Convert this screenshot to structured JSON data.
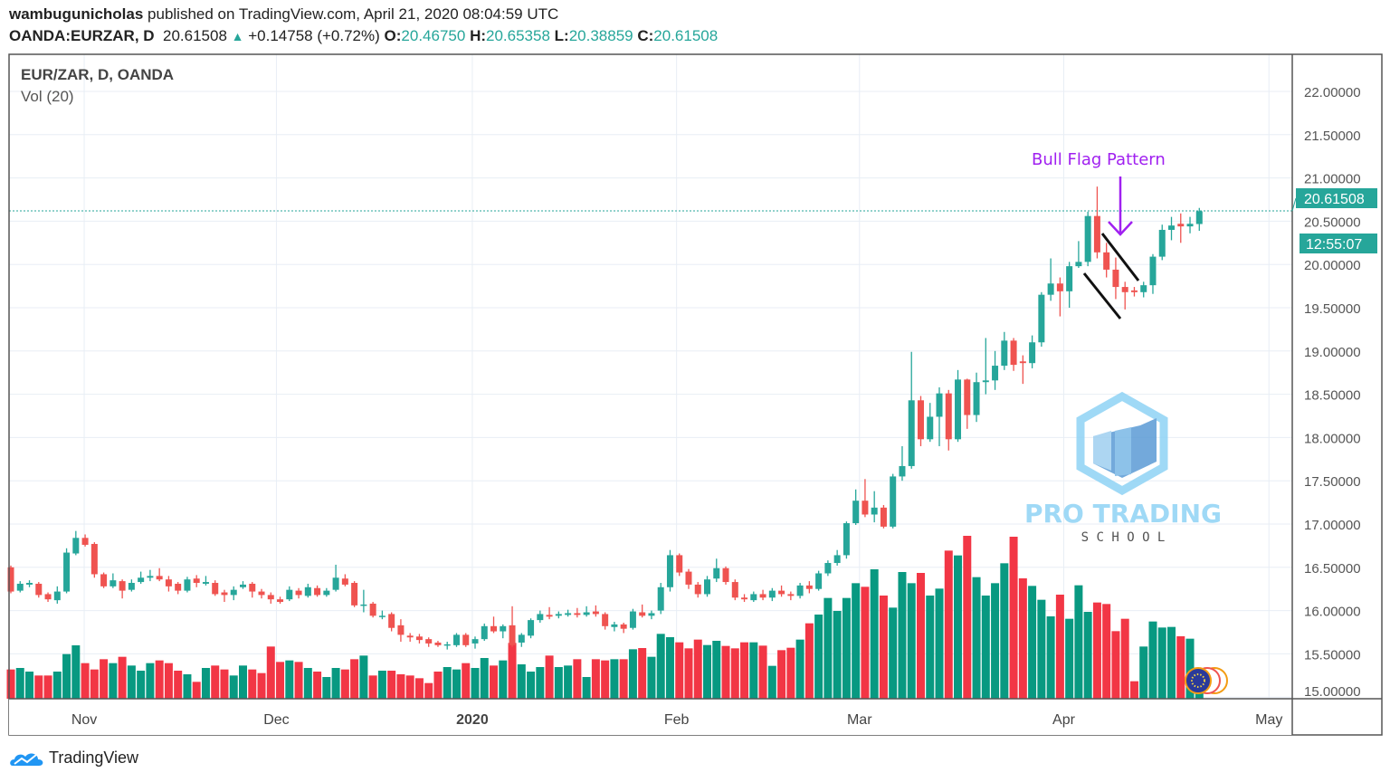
{
  "header": {
    "author": "wambugunicholas",
    "published_text": "published on TradingView.com, April 21, 2020 08:04:59 UTC",
    "symbol": "OANDA:EURZAR, D",
    "last_price": "20.61508",
    "change": "+0.14758 (+0.72%)",
    "open_label": "O:",
    "open": "20.46750",
    "high_label": "H:",
    "high": "20.65358",
    "low_label": "L:",
    "low": "20.38859",
    "close_label": "C:",
    "close": "20.61508"
  },
  "legend": {
    "title": "EUR/ZAR, D, OANDA",
    "volume": "Vol (20)"
  },
  "price_axis": {
    "current_price": "20.61508",
    "countdown": "12:55:07"
  },
  "annotation": {
    "text": "Bull Flag Pattern",
    "color": "#a020f0"
  },
  "watermark": {
    "line1": "PRO TRADING",
    "line2": "S C H O O L"
  },
  "footer": {
    "brand": "TradingView"
  },
  "colors": {
    "up": "#26a69a",
    "down": "#ef5350",
    "up_volume": "#089981",
    "down_volume": "#f23645",
    "grid": "#e8eef5",
    "price_line": "#26a69a"
  },
  "chart_data": {
    "type": "candlestick",
    "title": "EUR/ZAR, D, OANDA",
    "ylim": [
      15.0,
      22.0
    ],
    "y_ticks": [
      "22.00000",
      "21.50000",
      "21.00000",
      "20.50000",
      "20.00000",
      "19.50000",
      "19.00000",
      "18.50000",
      "18.00000",
      "17.50000",
      "17.00000",
      "16.50000",
      "16.00000",
      "15.50000",
      "15.00000"
    ],
    "x_ticks": [
      {
        "label": "Nov",
        "bar": 7.9
      },
      {
        "label": "Dec",
        "bar": 28.6
      },
      {
        "label": "2020",
        "bar": 49.7
      },
      {
        "label": "Feb",
        "bar": 71.7
      },
      {
        "label": "Mar",
        "bar": 91.4
      },
      {
        "label": "Apr",
        "bar": 113.4
      },
      {
        "label": "May",
        "bar": 135.5
      }
    ],
    "grid": true,
    "candle_fields": [
      "open",
      "high",
      "low",
      "close",
      "volume_relative"
    ],
    "candles": [
      [
        16.5,
        16.52,
        16.2,
        16.22,
        97
      ],
      [
        16.23,
        16.34,
        16.21,
        16.31,
        102
      ],
      [
        16.3,
        16.35,
        16.27,
        16.32,
        90
      ],
      [
        16.31,
        16.33,
        16.15,
        16.18,
        77
      ],
      [
        16.19,
        16.21,
        16.1,
        16.13,
        77
      ],
      [
        16.12,
        16.28,
        16.08,
        16.22,
        90
      ],
      [
        16.22,
        16.72,
        16.2,
        16.67,
        148
      ],
      [
        16.66,
        16.92,
        16.64,
        16.84,
        177
      ],
      [
        16.84,
        16.88,
        16.74,
        16.76,
        118
      ],
      [
        16.77,
        16.79,
        16.38,
        16.42,
        97
      ],
      [
        16.42,
        16.44,
        16.26,
        16.28,
        131
      ],
      [
        16.28,
        16.43,
        16.26,
        16.35,
        118
      ],
      [
        16.34,
        16.36,
        16.14,
        16.23,
        139
      ],
      [
        16.24,
        16.36,
        16.22,
        16.32,
        110
      ],
      [
        16.33,
        16.45,
        16.31,
        16.38,
        93
      ],
      [
        16.38,
        16.47,
        16.34,
        16.4,
        118
      ],
      [
        16.4,
        16.49,
        16.34,
        16.36,
        127
      ],
      [
        16.36,
        16.4,
        16.22,
        16.28,
        118
      ],
      [
        16.31,
        16.33,
        16.19,
        16.23,
        93
      ],
      [
        16.23,
        16.39,
        16.21,
        16.36,
        81
      ],
      [
        16.37,
        16.41,
        16.27,
        16.32,
        56
      ],
      [
        16.31,
        16.4,
        16.29,
        16.33,
        102
      ],
      [
        16.32,
        16.35,
        16.17,
        16.19,
        110
      ],
      [
        16.21,
        16.24,
        16.1,
        16.18,
        97
      ],
      [
        16.18,
        16.28,
        16.12,
        16.24,
        77
      ],
      [
        16.27,
        16.34,
        16.25,
        16.3,
        110
      ],
      [
        16.31,
        16.33,
        16.15,
        16.22,
        97
      ],
      [
        16.22,
        16.25,
        16.14,
        16.18,
        85
      ],
      [
        16.18,
        16.21,
        16.08,
        16.13,
        173
      ],
      [
        16.13,
        16.16,
        16.08,
        16.1,
        122
      ],
      [
        16.13,
        16.28,
        16.11,
        16.24,
        127
      ],
      [
        16.23,
        16.26,
        16.14,
        16.18,
        122
      ],
      [
        16.17,
        16.31,
        16.15,
        16.27,
        102
      ],
      [
        16.26,
        16.29,
        16.16,
        16.18,
        90
      ],
      [
        16.18,
        16.26,
        16.16,
        16.23,
        72
      ],
      [
        16.24,
        16.53,
        16.22,
        16.38,
        102
      ],
      [
        16.37,
        16.42,
        16.28,
        16.3,
        97
      ],
      [
        16.32,
        16.34,
        16.04,
        16.06,
        131
      ],
      [
        16.06,
        16.24,
        15.98,
        16.07,
        143
      ],
      [
        16.08,
        16.1,
        15.92,
        15.94,
        77
      ],
      [
        15.93,
        16.0,
        15.9,
        15.94,
        93
      ],
      [
        15.96,
        15.98,
        15.76,
        15.8,
        93
      ],
      [
        15.83,
        15.9,
        15.64,
        15.72,
        81
      ],
      [
        15.71,
        15.74,
        15.64,
        15.69,
        77
      ],
      [
        15.7,
        15.73,
        15.62,
        15.66,
        68
      ],
      [
        15.67,
        15.69,
        15.58,
        15.62,
        52
      ],
      [
        15.63,
        15.65,
        15.58,
        15.6,
        90
      ],
      [
        15.61,
        15.64,
        15.55,
        15.61,
        105
      ],
      [
        15.6,
        15.74,
        15.58,
        15.72,
        97
      ],
      [
        15.72,
        15.74,
        15.58,
        15.6,
        118
      ],
      [
        15.62,
        15.7,
        15.56,
        15.67,
        102
      ],
      [
        15.67,
        15.85,
        15.65,
        15.82,
        135
      ],
      [
        15.82,
        15.93,
        15.74,
        15.76,
        110
      ],
      [
        15.76,
        15.84,
        15.68,
        15.82,
        127
      ],
      [
        15.83,
        16.05,
        15.58,
        15.6,
        185
      ],
      [
        15.63,
        15.74,
        15.58,
        15.72,
        114
      ],
      [
        15.71,
        15.91,
        15.68,
        15.89,
        90
      ],
      [
        15.89,
        16.0,
        15.86,
        15.96,
        105
      ],
      [
        15.95,
        16.04,
        15.9,
        15.93,
        143
      ],
      [
        15.94,
        15.99,
        15.91,
        15.96,
        105
      ],
      [
        15.95,
        16.01,
        15.93,
        15.97,
        110
      ],
      [
        15.97,
        16.03,
        15.92,
        15.95,
        131
      ],
      [
        15.95,
        16.05,
        15.93,
        15.98,
        72
      ],
      [
        15.99,
        16.06,
        15.93,
        15.96,
        131
      ],
      [
        15.96,
        15.98,
        15.78,
        15.82,
        127
      ],
      [
        15.81,
        15.87,
        15.76,
        15.84,
        131
      ],
      [
        15.84,
        15.86,
        15.74,
        15.79,
        131
      ],
      [
        15.8,
        16.02,
        15.78,
        15.99,
        164
      ],
      [
        15.98,
        16.07,
        15.92,
        15.94,
        168
      ],
      [
        15.94,
        16.0,
        15.9,
        15.97,
        139
      ],
      [
        16.0,
        16.32,
        15.96,
        16.27,
        215
      ],
      [
        16.27,
        16.7,
        16.22,
        16.64,
        204
      ],
      [
        16.64,
        16.66,
        16.4,
        16.44,
        187
      ],
      [
        16.45,
        16.48,
        16.25,
        16.3,
        167
      ],
      [
        16.3,
        16.33,
        16.15,
        16.19,
        196
      ],
      [
        16.19,
        16.4,
        16.16,
        16.36,
        178
      ],
      [
        16.37,
        16.6,
        16.33,
        16.49,
        192
      ],
      [
        16.49,
        16.51,
        16.3,
        16.33,
        175
      ],
      [
        16.33,
        16.36,
        16.12,
        16.15,
        167
      ],
      [
        16.15,
        16.19,
        16.1,
        16.13,
        187
      ],
      [
        16.12,
        16.22,
        16.1,
        16.19,
        187
      ],
      [
        16.19,
        16.24,
        16.12,
        16.15,
        176
      ],
      [
        16.15,
        16.26,
        16.11,
        16.23,
        109
      ],
      [
        16.23,
        16.29,
        16.16,
        16.19,
        161
      ],
      [
        16.19,
        16.22,
        16.12,
        16.17,
        169
      ],
      [
        16.17,
        16.32,
        16.14,
        16.29,
        196
      ],
      [
        16.29,
        16.34,
        16.2,
        16.25,
        250
      ],
      [
        16.25,
        16.46,
        16.23,
        16.43,
        279
      ],
      [
        16.43,
        16.58,
        16.4,
        16.55,
        334
      ],
      [
        16.55,
        16.7,
        16.52,
        16.64,
        291
      ],
      [
        16.64,
        17.03,
        16.6,
        17.01,
        334
      ],
      [
        17.01,
        17.4,
        16.99,
        17.27,
        383
      ],
      [
        17.27,
        17.52,
        17.08,
        17.11,
        371
      ],
      [
        17.11,
        17.38,
        17.02,
        17.19,
        429
      ],
      [
        17.19,
        17.22,
        16.95,
        16.97,
        342
      ],
      [
        16.97,
        17.58,
        16.95,
        17.55,
        302
      ],
      [
        17.55,
        17.9,
        17.5,
        17.67,
        420
      ],
      [
        17.67,
        18.99,
        17.64,
        18.43,
        383
      ],
      [
        18.43,
        18.48,
        17.9,
        17.98,
        417
      ],
      [
        17.98,
        18.4,
        17.95,
        18.24,
        342
      ],
      [
        18.24,
        18.58,
        17.9,
        18.51,
        365
      ],
      [
        18.51,
        18.55,
        17.85,
        17.98,
        491
      ],
      [
        17.98,
        18.78,
        17.95,
        18.67,
        475
      ],
      [
        18.67,
        18.68,
        18.1,
        18.26,
        540
      ],
      [
        18.26,
        18.75,
        18.18,
        18.64,
        403
      ],
      [
        18.64,
        19.15,
        18.5,
        18.66,
        342
      ],
      [
        18.66,
        19.0,
        18.55,
        18.83,
        383
      ],
      [
        18.83,
        19.22,
        18.78,
        19.12,
        449
      ],
      [
        19.12,
        19.15,
        18.77,
        18.84,
        537
      ],
      [
        18.88,
        18.95,
        18.62,
        18.86,
        399
      ],
      [
        18.86,
        19.18,
        18.8,
        19.1,
        374
      ],
      [
        19.1,
        19.68,
        19.05,
        19.65,
        328
      ],
      [
        19.65,
        20.07,
        19.58,
        19.78,
        273
      ],
      [
        19.78,
        19.85,
        19.4,
        19.69,
        345
      ],
      [
        19.69,
        20.03,
        19.5,
        19.98,
        265
      ],
      [
        19.98,
        20.27,
        19.96,
        20.03,
        376
      ],
      [
        20.03,
        20.61,
        19.98,
        20.56,
        288
      ],
      [
        20.56,
        20.9,
        20.07,
        20.14,
        319
      ],
      [
        20.14,
        20.25,
        19.85,
        19.94,
        314
      ],
      [
        19.94,
        20.08,
        19.6,
        19.74,
        224
      ],
      [
        19.74,
        19.8,
        19.48,
        19.68,
        265
      ],
      [
        19.7,
        19.74,
        19.63,
        19.68,
        58
      ],
      [
        19.68,
        19.8,
        19.62,
        19.76,
        173
      ],
      [
        19.76,
        20.12,
        19.66,
        20.09,
        256
      ],
      [
        20.09,
        20.46,
        20.05,
        20.4,
        236
      ],
      [
        20.4,
        20.55,
        20.28,
        20.45,
        238
      ],
      [
        20.47,
        20.59,
        20.25,
        20.44,
        207
      ],
      [
        20.44,
        20.55,
        20.36,
        20.47,
        199
      ],
      [
        20.4675,
        20.65358,
        20.38859,
        20.61508,
        30
      ]
    ]
  }
}
